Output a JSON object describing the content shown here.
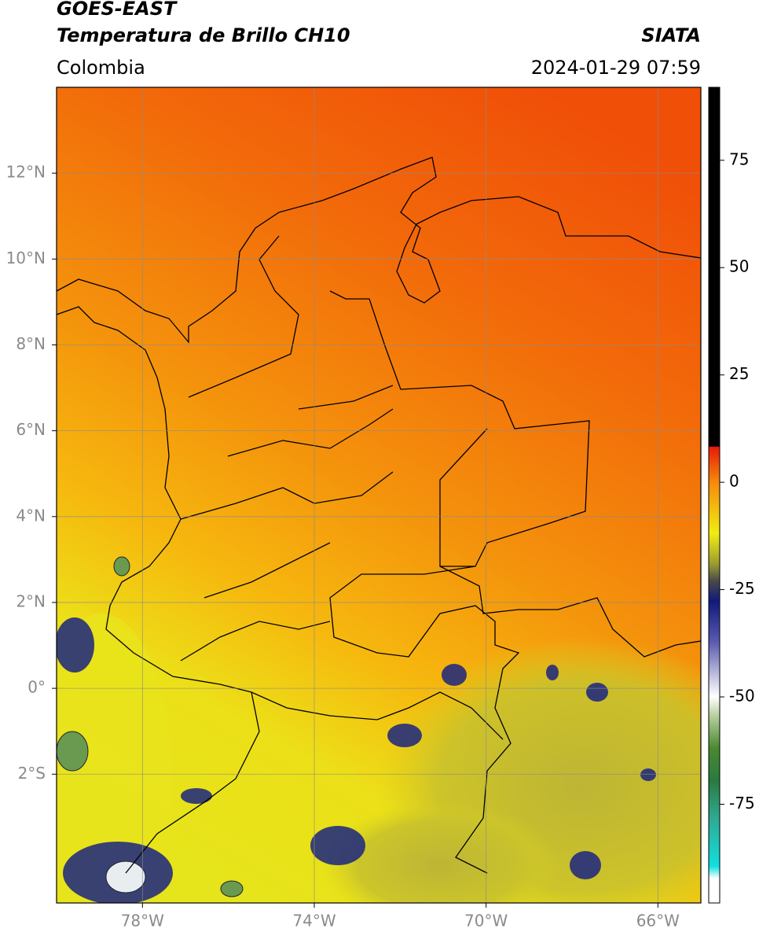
{
  "header": {
    "satellite": "GOES-EAST",
    "product": "Temperatura de Brillo CH10",
    "agency": "SIATA",
    "region": "Colombia",
    "datetime": "2024-01-29 07:59"
  },
  "map": {
    "lonlim": [
      -80,
      -65
    ],
    "latlim": [
      -5,
      14
    ],
    "grid": true,
    "lonticks": [
      {
        "value": -78,
        "label": "78°W"
      },
      {
        "value": -74,
        "label": "74°W"
      },
      {
        "value": -70,
        "label": "70°W"
      },
      {
        "value": -66,
        "label": "66°W"
      }
    ],
    "latticks": [
      {
        "value": 12,
        "label": "12°N"
      },
      {
        "value": 10,
        "label": "10°N"
      },
      {
        "value": 8,
        "label": "8°N"
      },
      {
        "value": 6,
        "label": "6°N"
      },
      {
        "value": 4,
        "label": "4°N"
      },
      {
        "value": 2,
        "label": "2°N"
      },
      {
        "value": 0,
        "label": "0°"
      },
      {
        "value": -2,
        "label": "2°S"
      }
    ]
  },
  "colorbar": {
    "lim": [
      -98,
      92
    ],
    "ticks": [
      75,
      50,
      25,
      0,
      -25,
      -50,
      -75
    ]
  }
}
